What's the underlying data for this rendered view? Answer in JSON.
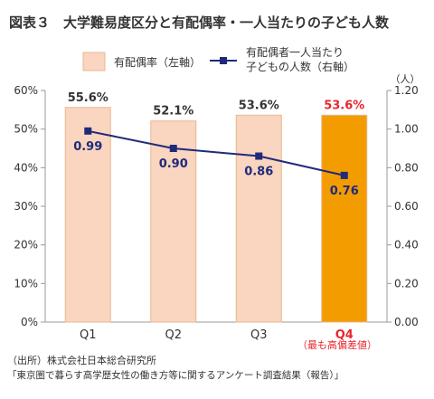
{
  "chart_data": {
    "type": "bar",
    "title": "図表３　大学難易度区分と有配偶率・一人当たりの子ども人数",
    "categories": [
      "Q1",
      "Q2",
      "Q3",
      "Q4"
    ],
    "category_note": "（最も高偏差値）",
    "series": [
      {
        "name": "有配偶率（左軸）",
        "type": "bar",
        "axis": "left",
        "values": [
          55.6,
          52.1,
          53.6,
          53.6
        ],
        "labels": [
          "55.6%",
          "52.1%",
          "53.6%",
          "53.6%"
        ],
        "colors": [
          "#fad5bf",
          "#fad5bf",
          "#fad5bf",
          "#f39c00"
        ],
        "border": "#e8b890"
      },
      {
        "name": "有配偶者一人当たり子どもの人数（右軸）",
        "legend_lines": [
          "有配偶者一人当たり",
          "子どもの人数（右軸）"
        ],
        "type": "line",
        "axis": "right",
        "values": [
          0.99,
          0.9,
          0.86,
          0.76
        ],
        "labels": [
          "0.99",
          "0.90",
          "0.86",
          "0.76"
        ],
        "color": "#1f2a7a"
      }
    ],
    "y_left": {
      "min": 0,
      "max": 60,
      "ticks": [
        "0%",
        "10%",
        "20%",
        "30%",
        "40%",
        "50%",
        "60%"
      ]
    },
    "y_right": {
      "min": 0,
      "max": 1.2,
      "unit": "（人）",
      "ticks": [
        "0.00",
        "0.20",
        "0.40",
        "0.60",
        "0.80",
        "1.00",
        "1.20"
      ]
    },
    "grid": false,
    "legend_position": "top",
    "highlight_color": "#e8262e",
    "source_lines": [
      "（出所）株式会社日本総合研究所",
      "「東京圏で暮らす高学歴女性の働き方等に関するアンケート調査結果（報告）」"
    ]
  }
}
